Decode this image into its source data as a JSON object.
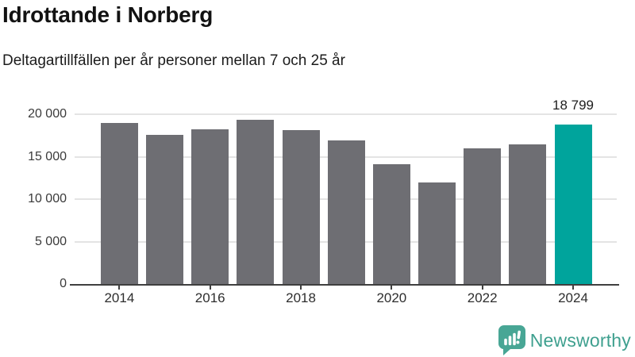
{
  "title": "Idrottande i Norberg",
  "subtitle": "Deltagartillfällen per år personer mellan 7 och 25 år",
  "chart_data": {
    "type": "bar",
    "categories": [
      "2014",
      "2015",
      "2016",
      "2017",
      "2018",
      "2019",
      "2020",
      "2021",
      "2022",
      "2023",
      "2024"
    ],
    "values": [
      19000,
      17550,
      18250,
      19350,
      18150,
      16900,
      14150,
      11950,
      15950,
      16450,
      18799
    ],
    "highlight_index": 10,
    "annotations": [
      {
        "category": "2024",
        "text": "18 799"
      }
    ],
    "title": "Idrottande i Norberg",
    "xlabel": "",
    "ylabel": "",
    "ylim": [
      0,
      20900
    ],
    "grid": true,
    "legend": "none",
    "y_ticks": [
      {
        "value": 0,
        "label": "0"
      },
      {
        "value": 5000,
        "label": "5 000"
      },
      {
        "value": 10000,
        "label": "10 000"
      },
      {
        "value": 15000,
        "label": "15 000"
      },
      {
        "value": 20000,
        "label": "20 000"
      }
    ],
    "x_tick_labels": [
      "2014",
      "2016",
      "2018",
      "2020",
      "2022",
      "2024"
    ],
    "colors": {
      "bar": "#6e6e73",
      "highlight": "#00a49c",
      "grid": "#e4e4e4",
      "axis": "#3f3f3f",
      "tick": "#3f3f3f"
    }
  },
  "branding": {
    "logo_text": "Newsworthy",
    "logo_color": "#3fa08f",
    "icon_color": "#48a695",
    "icon_name": "newsworthy-bars-icon"
  }
}
